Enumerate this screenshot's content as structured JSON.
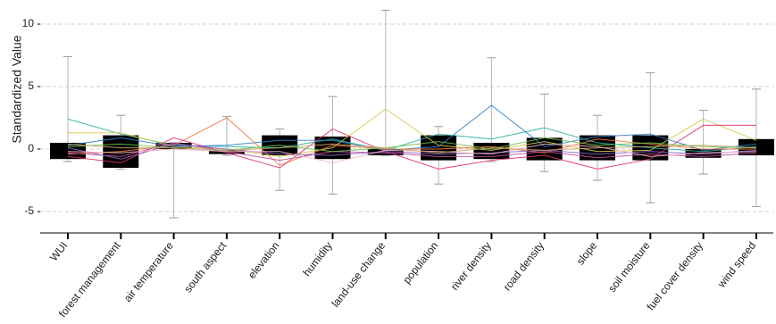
{
  "chart_data": {
    "type": "box",
    "ylabel": "Standardized Value",
    "xlabel": "",
    "ylim": [
      -6.5,
      11.5
    ],
    "yticks": [
      -5,
      0,
      5,
      10
    ],
    "grid": "horizontal-dashed-at-ticks",
    "categories": [
      "WUI",
      "forest management",
      "air temperature",
      "south aspect",
      "elevation",
      "humidity",
      "land-use change",
      "population",
      "river density",
      "road density",
      "slope",
      "soil moisture",
      "fuel cover density",
      "wind speed"
    ],
    "boxes": [
      {
        "q1": -0.8,
        "q3": 0.5,
        "whisker_low": -1.0,
        "whisker_high": 7.4
      },
      {
        "q1": -1.5,
        "q3": 1.1,
        "whisker_low": -1.6,
        "whisker_high": 2.7
      },
      {
        "q1": 0.0,
        "q3": 0.5,
        "whisker_low": -5.5,
        "whisker_high": 0.5
      },
      {
        "q1": -0.4,
        "q3": -0.1,
        "whisker_low": -0.5,
        "whisker_high": 2.6
      },
      {
        "q1": -0.5,
        "q3": 1.1,
        "whisker_low": -3.3,
        "whisker_high": 1.6
      },
      {
        "q1": -0.8,
        "q3": 1.0,
        "whisker_low": -3.6,
        "whisker_high": 4.2
      },
      {
        "q1": -0.5,
        "q3": 0.0,
        "whisker_low": -0.5,
        "whisker_high": 11.1
      },
      {
        "q1": -0.9,
        "q3": 1.1,
        "whisker_low": -2.8,
        "whisker_high": 1.8
      },
      {
        "q1": -0.8,
        "q3": 0.5,
        "whisker_low": -1.0,
        "whisker_high": 7.3
      },
      {
        "q1": -0.9,
        "q3": 0.9,
        "whisker_low": -1.8,
        "whisker_high": 4.4
      },
      {
        "q1": -0.9,
        "q3": 1.1,
        "whisker_low": -2.5,
        "whisker_high": 2.7
      },
      {
        "q1": -0.9,
        "q3": 1.1,
        "whisker_low": -4.3,
        "whisker_high": 6.1
      },
      {
        "q1": -0.7,
        "q3": 0.0,
        "whisker_low": -2.0,
        "whisker_high": 3.1
      },
      {
        "q1": -0.5,
        "q3": 0.8,
        "whisker_low": -4.6,
        "whisker_high": 4.8
      }
    ],
    "series": [
      {
        "color": "#2ab3a0",
        "values": [
          2.4,
          1.2,
          0.3,
          0.2,
          0.1,
          0.8,
          -0.1,
          1.2,
          0.8,
          1.7,
          0.5,
          0.1,
          -0.2,
          0.2
        ]
      },
      {
        "color": "#d9c84a",
        "values": [
          1.3,
          1.3,
          0.2,
          0.0,
          -0.6,
          0.1,
          3.2,
          0.3,
          -0.1,
          0.6,
          -0.2,
          -0.1,
          2.4,
          0.7
        ]
      },
      {
        "color": "#2f7fc9",
        "values": [
          0.3,
          0.9,
          0.2,
          0.3,
          0.7,
          0.7,
          -0.1,
          0.2,
          3.5,
          0.2,
          1.0,
          1.2,
          -0.1,
          0.4
        ]
      },
      {
        "color": "#f0783c",
        "values": [
          -0.4,
          -0.2,
          0.3,
          2.5,
          -1.3,
          0.3,
          0.0,
          0.0,
          0.2,
          -0.3,
          0.8,
          0.4,
          0.0,
          0.0
        ]
      },
      {
        "color": "#e0326e",
        "values": [
          -0.6,
          -1.1,
          0.9,
          -0.3,
          -1.5,
          1.6,
          -0.2,
          -1.6,
          -0.9,
          -0.5,
          -1.6,
          -0.8,
          1.9,
          1.9
        ]
      },
      {
        "color": "#c44fa0",
        "values": [
          -0.3,
          -0.6,
          0.5,
          -0.2,
          -0.9,
          -0.2,
          -0.3,
          -0.6,
          -0.6,
          -0.2,
          -0.7,
          -0.4,
          -0.6,
          -0.3
        ]
      },
      {
        "color": "#8d62c8",
        "values": [
          0.1,
          -0.8,
          0.4,
          0.0,
          -0.4,
          -0.5,
          -0.2,
          -0.4,
          -0.3,
          -0.1,
          -0.4,
          -0.2,
          -0.4,
          -0.1
        ]
      },
      {
        "color": "#6cc24a",
        "values": [
          0.2,
          0.4,
          0.1,
          -0.1,
          0.3,
          -0.2,
          0.1,
          0.6,
          0.0,
          0.9,
          0.3,
          0.5,
          0.2,
          0.1
        ]
      },
      {
        "color": "#f4b3c2",
        "values": [
          -0.2,
          -0.3,
          0.0,
          -0.2,
          -0.2,
          -1.1,
          -0.1,
          -0.2,
          -0.4,
          0.4,
          0.2,
          -0.6,
          -0.3,
          -0.2
        ]
      },
      {
        "color": "#c9a26a",
        "values": [
          0.4,
          0.1,
          0.1,
          -0.1,
          0.1,
          0.4,
          0.1,
          -0.3,
          0.1,
          -0.1,
          0.1,
          0.2,
          0.3,
          0.1
        ]
      }
    ]
  }
}
